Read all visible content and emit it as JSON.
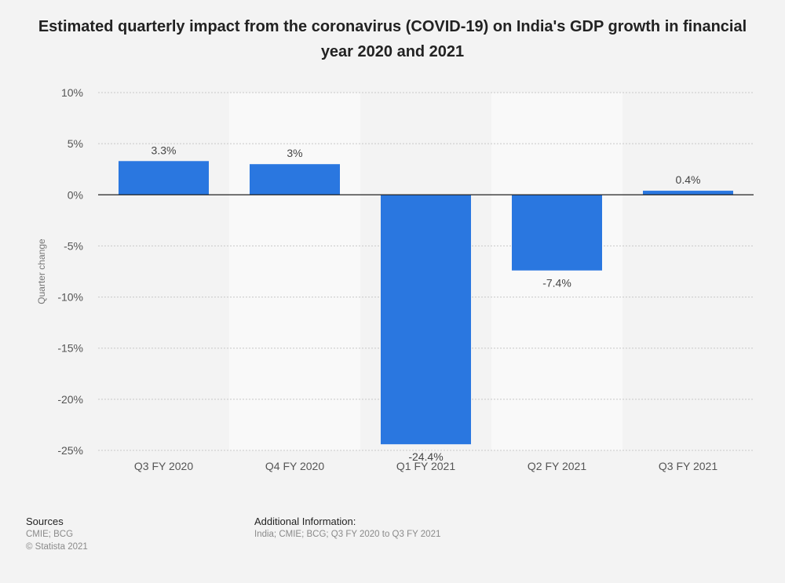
{
  "chart_data": {
    "type": "bar",
    "title": "Estimated quarterly impact from the coronavirus (COVID-19) on India's GDP growth in financial year 2020 and 2021",
    "ylabel": "Quarter change",
    "xlabel": "",
    "categories": [
      "Q3 FY 2020",
      "Q4 FY 2020",
      "Q1 FY 2021",
      "Q2 FY 2021",
      "Q3 FY 2021"
    ],
    "values": [
      3.3,
      3,
      -24.4,
      -7.4,
      0.4
    ],
    "data_labels": [
      "3.3%",
      "3%",
      "-24.4%",
      "-7.4%",
      "0.4%"
    ],
    "ylim": [
      -25,
      10
    ],
    "yticks": [
      10,
      5,
      0,
      -5,
      -10,
      -15,
      -20,
      -25
    ],
    "ytick_labels": [
      "10%",
      "5%",
      "0%",
      "-5%",
      "-10%",
      "-15%",
      "-20%",
      "-25%"
    ],
    "grid": true,
    "bar_color": "#2a77e0"
  },
  "footer": {
    "sources_heading": "Sources",
    "sources_lines": [
      "CMIE; BCG",
      "© Statista 2021"
    ],
    "additional_heading": "Additional Information:",
    "additional_text": "India; CMIE; BCG; Q3 FY 2020 to Q3 FY 2021"
  }
}
